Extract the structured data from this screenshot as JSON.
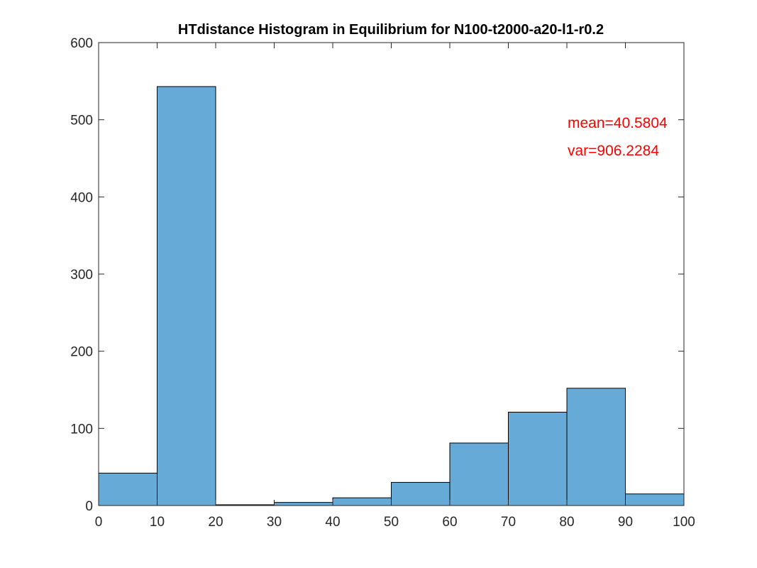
{
  "chart_data": {
    "type": "bar",
    "title": "HTdistance Histogram in Equilibrium for N100-t2000-a20-l1-r0.2",
    "xlabel": "",
    "ylabel": "",
    "bin_edges": [
      0,
      10,
      20,
      30,
      40,
      50,
      60,
      70,
      80,
      90,
      100
    ],
    "values": [
      42,
      543,
      1,
      4,
      10,
      30,
      81,
      121,
      152,
      15
    ],
    "xlim": [
      0,
      100
    ],
    "ylim": [
      0,
      600
    ],
    "xticks": [
      "0",
      "10",
      "20",
      "30",
      "40",
      "50",
      "60",
      "70",
      "80",
      "90",
      "100"
    ],
    "yticks": [
      "0",
      "100",
      "200",
      "300",
      "400",
      "500",
      "600"
    ],
    "annotations": [
      "mean=40.5804",
      "var=906.2284"
    ],
    "grid": false,
    "legend": "none",
    "colors": {
      "bar_fill": "#66aad7",
      "bar_edge": "#000000",
      "annotation": "#ff0000",
      "axis": "#262626"
    }
  }
}
